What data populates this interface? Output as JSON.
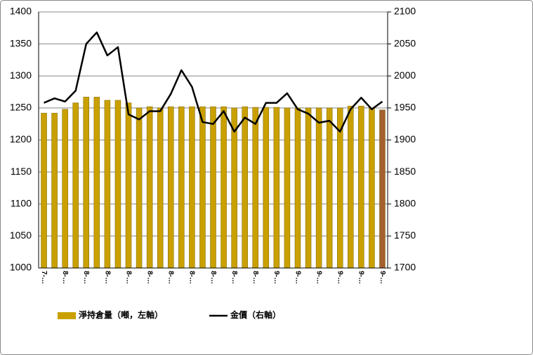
{
  "chart_data": {
    "type": "bar_line",
    "categories": [
      "7-…",
      null,
      "8-…",
      null,
      "8-…",
      null,
      "8-…",
      null,
      "8-…",
      null,
      "8-…",
      null,
      "8-…",
      null,
      "8-…",
      null,
      "8-…",
      null,
      "8-…",
      null,
      "8-…",
      null,
      "9-…",
      null,
      "9-…",
      null,
      "9-…",
      null,
      "9-…",
      null,
      "9-…",
      null,
      "9-…"
    ],
    "series": [
      {
        "name": "淨持倉量（噸，左軸）",
        "type": "bar",
        "color": "#c9a000",
        "colors": [
          "#c9a000",
          "#c9a000",
          "#c9a000",
          "#c9a000",
          "#c9a000",
          "#c9a000",
          "#c9a000",
          "#c9a000",
          "#c9a000",
          "#c9a000",
          "#c9a000",
          "#c9a000",
          "#c9a000",
          "#c9a000",
          "#c9a000",
          "#c9a000",
          "#c9a000",
          "#c9a000",
          "#c9a000",
          "#c9a000",
          "#c9a000",
          "#c9a000",
          "#c9a000",
          "#c9a000",
          "#c9a000",
          "#c9a000",
          "#c9a000",
          "#c9a000",
          "#c9a000",
          "#c9a000",
          "#c9a000",
          "#c9a000",
          "#a5602e"
        ],
        "values": [
          1242,
          1242,
          1248,
          1258,
          1267,
          1267,
          1262,
          1262,
          1258,
          1250,
          1252,
          1250,
          1252,
          1252,
          1252,
          1252,
          1252,
          1252,
          1250,
          1252,
          1251,
          1251,
          1251,
          1250,
          1250,
          1250,
          1250,
          1250,
          1250,
          1253,
          1253,
          1250,
          1247
        ]
      },
      {
        "name": "金價（右軸）",
        "type": "line",
        "axis": "y2",
        "color": "#000000",
        "values": [
          1958,
          1965,
          1960,
          1977,
          2050,
          2068,
          2032,
          2045,
          1940,
          1932,
          1945,
          1945,
          1972,
          2009,
          1983,
          1928,
          1925,
          1945,
          1913,
          1935,
          1925,
          1958,
          1958,
          1973,
          1948,
          1941,
          1927,
          1930,
          1913,
          1948,
          1966,
          1948,
          1960
        ]
      }
    ],
    "ylim": [
      1000,
      1400
    ],
    "yticks": [
      1000,
      1050,
      1100,
      1150,
      1200,
      1250,
      1300,
      1350,
      1400
    ],
    "y2lim": [
      1700,
      2100
    ],
    "y2ticks": [
      1700,
      1750,
      1800,
      1850,
      1900,
      1950,
      2000,
      2050,
      2100
    ],
    "grid": true,
    "legend": "bottom"
  }
}
